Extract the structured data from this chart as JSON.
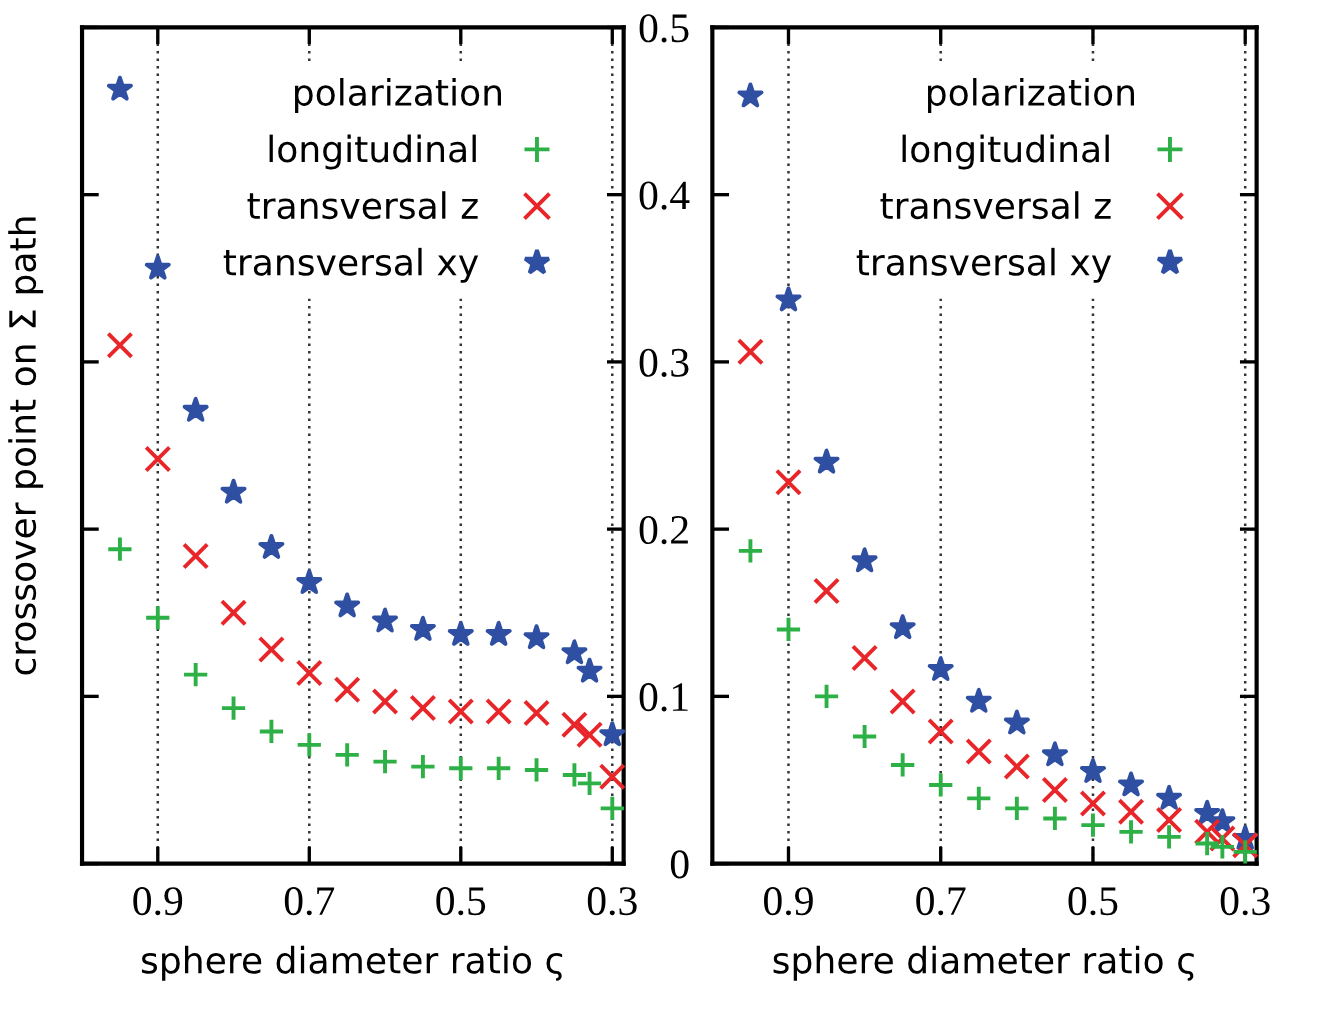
{
  "chart_data": [
    {
      "type": "scatter",
      "xlabel": "sphere diameter ratio ς",
      "ylabel": "crossover point on Σ path",
      "legend_title": "polarization",
      "legend": "top right",
      "grid": "x",
      "tick_labels": "x",
      "x": [
        0.95,
        0.9,
        0.85,
        0.8,
        0.75,
        0.7,
        0.65,
        0.6,
        0.55,
        0.5,
        0.45,
        0.4,
        0.35,
        0.33,
        0.3
      ],
      "xlim": [
        1.0,
        0.285
      ],
      "xticks": [
        0.9,
        0.7,
        0.5,
        0.3
      ],
      "ylim": [
        0,
        0.5
      ],
      "yticks": [
        0,
        0.1,
        0.2,
        0.3,
        0.4,
        0.5
      ],
      "series": [
        {
          "name": "longitudinal",
          "color": "#2db045",
          "marker": "plus",
          "values": [
            0.188,
            0.147,
            0.113,
            0.093,
            0.079,
            0.071,
            0.065,
            0.061,
            0.058,
            0.057,
            0.057,
            0.056,
            0.053,
            0.048,
            0.033
          ]
        },
        {
          "name": "transversal z",
          "color": "#e8262a",
          "marker": "cross",
          "values": [
            0.31,
            0.242,
            0.184,
            0.15,
            0.128,
            0.114,
            0.104,
            0.097,
            0.093,
            0.091,
            0.091,
            0.09,
            0.083,
            0.077,
            0.052
          ]
        },
        {
          "name": "transversal xy",
          "color": "#2f4fa2",
          "marker": "star",
          "values": [
            0.463,
            0.356,
            0.271,
            0.222,
            0.189,
            0.168,
            0.154,
            0.145,
            0.14,
            0.137,
            0.137,
            0.135,
            0.126,
            0.115,
            0.077
          ]
        }
      ]
    },
    {
      "type": "scatter",
      "xlabel": "sphere diameter ratio ς",
      "legend_title": "polarization",
      "legend": "top right",
      "grid": "x",
      "x": [
        0.95,
        0.9,
        0.85,
        0.8,
        0.75,
        0.7,
        0.65,
        0.6,
        0.55,
        0.5,
        0.45,
        0.4,
        0.35,
        0.33,
        0.3
      ],
      "xlim": [
        1.0,
        0.285
      ],
      "xticks": [
        0.9,
        0.7,
        0.5,
        0.3
      ],
      "ylim": [
        0,
        0.5
      ],
      "yticks": [
        0,
        0.1,
        0.2,
        0.3,
        0.4,
        0.5
      ],
      "series": [
        {
          "name": "longitudinal",
          "color": "#2db045",
          "marker": "plus",
          "values": [
            0.187,
            0.14,
            0.1,
            0.076,
            0.059,
            0.047,
            0.039,
            0.033,
            0.027,
            0.023,
            0.019,
            0.016,
            0.012,
            0.01,
            0.007
          ]
        },
        {
          "name": "transversal z",
          "color": "#e8262a",
          "marker": "cross",
          "values": [
            0.306,
            0.228,
            0.163,
            0.123,
            0.097,
            0.079,
            0.067,
            0.058,
            0.044,
            0.036,
            0.031,
            0.026,
            0.019,
            0.015,
            0.011
          ]
        },
        {
          "name": "transversal xy",
          "color": "#2f4fa2",
          "marker": "star",
          "values": [
            0.459,
            0.337,
            0.24,
            0.181,
            0.141,
            0.116,
            0.097,
            0.084,
            0.065,
            0.055,
            0.047,
            0.039,
            0.03,
            0.025,
            0.015
          ]
        }
      ]
    }
  ]
}
